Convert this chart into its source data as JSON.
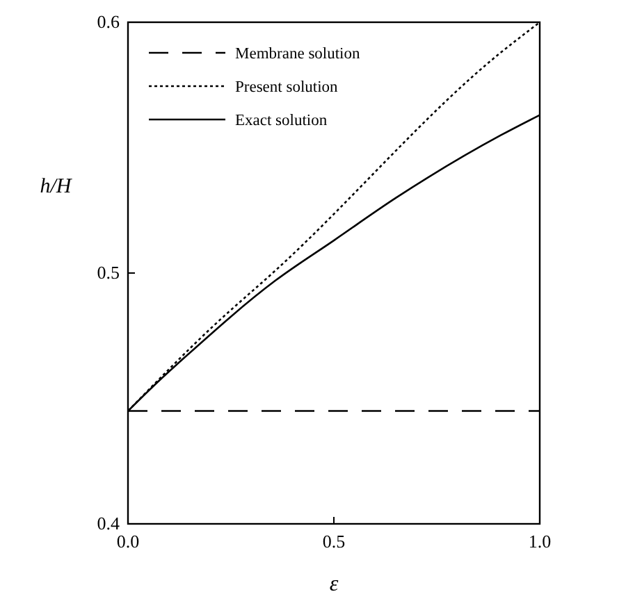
{
  "chart_data": {
    "type": "line",
    "xlabel": "ε",
    "ylabel": "h/H",
    "xlim": [
      0,
      1
    ],
    "ylim": [
      0.4,
      0.6
    ],
    "xticks": [
      {
        "value": 0,
        "label": "0.0"
      },
      {
        "value": 0.5,
        "label": "0.5"
      },
      {
        "value": 1,
        "label": "1.0"
      }
    ],
    "yticks": [
      {
        "value": 0.4,
        "label": "0.4"
      },
      {
        "value": 0.5,
        "label": "0.5"
      },
      {
        "value": 0.6,
        "label": "0.6"
      }
    ],
    "grid": false,
    "legend": "top left",
    "series": [
      {
        "name": "Membrane solution",
        "color": "#000000",
        "line_style": "dashed",
        "x": [
          0,
          1
        ],
        "values": [
          0.445,
          0.445
        ]
      },
      {
        "name": "Present solution",
        "color": "#000000",
        "line_style": "dotted",
        "x": [
          0,
          0.208,
          0.358,
          0.906,
          1
        ],
        "values": [
          0.445,
          0.479,
          0.501,
          0.588,
          0.6
        ]
      },
      {
        "name": "Exact solution",
        "color": "#000000",
        "line_style": "solid",
        "x": [
          0,
          0.075,
          0.142,
          0.358,
          0.5,
          0.651,
          0.906,
          1
        ],
        "values": [
          0.445,
          0.457,
          0.467,
          0.497,
          0.513,
          0.53,
          0.555,
          0.563
        ]
      }
    ]
  }
}
